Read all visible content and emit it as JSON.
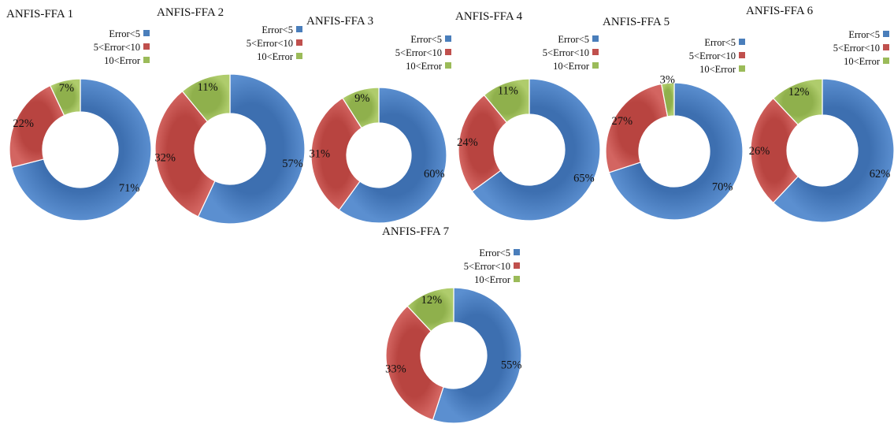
{
  "legend": {
    "entries": [
      "Error<5",
      "5<Error<10",
      "10<Error"
    ],
    "colors": [
      "#4a7ebb",
      "#c0504d",
      "#9bbb59"
    ]
  },
  "chart_data": [
    {
      "type": "pie",
      "title": "ANFIS-FFA 1",
      "categories": [
        "Error<5",
        "5<Error<10",
        "10<Error"
      ],
      "values": [
        71,
        22,
        7
      ],
      "labels": [
        "71%",
        "22%",
        "7%"
      ]
    },
    {
      "type": "pie",
      "title": "ANFIS-FFA 2",
      "categories": [
        "Error<5",
        "5<Error<10",
        "10<Error"
      ],
      "values": [
        57,
        32,
        11
      ],
      "labels": [
        "57%",
        "32%",
        "11%"
      ]
    },
    {
      "type": "pie",
      "title": "ANFIS-FFA 3",
      "categories": [
        "Error<5",
        "5<Error<10",
        "10<Error"
      ],
      "values": [
        60,
        31,
        9
      ],
      "labels": [
        "60%",
        "31%",
        "9%"
      ]
    },
    {
      "type": "pie",
      "title": "ANFIS-FFA 4",
      "categories": [
        "Error<5",
        "5<Error<10",
        "10<Error"
      ],
      "values": [
        65,
        24,
        11
      ],
      "labels": [
        "65%",
        "24%",
        "11%"
      ]
    },
    {
      "type": "pie",
      "title": "ANFIS-FFA 5",
      "categories": [
        "Error<5",
        "5<Error<10",
        "10<Error"
      ],
      "values": [
        70,
        27,
        3
      ],
      "labels": [
        "70%",
        "27%",
        "3%"
      ]
    },
    {
      "type": "pie",
      "title": "ANFIS-FFA 6",
      "categories": [
        "Error<5",
        "5<Error<10",
        "10<Error"
      ],
      "values": [
        62,
        26,
        12
      ],
      "labels": [
        "62%",
        "26%",
        "12%"
      ]
    },
    {
      "type": "pie",
      "title": "ANFIS-FFA 7",
      "categories": [
        "Error<5",
        "5<Error<10",
        "10<Error"
      ],
      "values": [
        55,
        33,
        12
      ],
      "labels": [
        "55%",
        "33%",
        "12%"
      ]
    }
  ]
}
